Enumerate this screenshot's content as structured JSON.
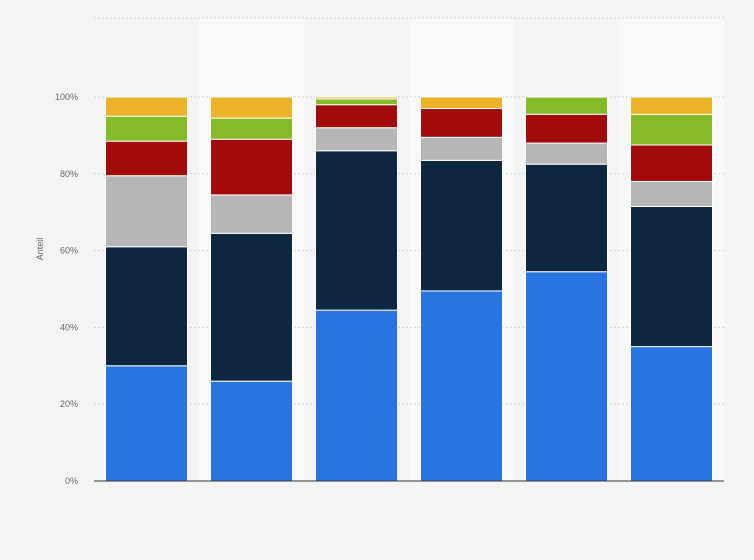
{
  "chart_data": {
    "type": "bar",
    "stacked": true,
    "categories": [
      "",
      "",
      "",
      "",
      "",
      ""
    ],
    "series": [
      {
        "color": "#2874e0",
        "values": [
          30,
          26,
          44.5,
          49.5,
          54.5,
          35
        ]
      },
      {
        "color": "#0e2740",
        "values": [
          31,
          38.5,
          41.5,
          34,
          28,
          36.5
        ]
      },
      {
        "color": "#b6b6b6",
        "values": [
          18.5,
          10,
          6,
          6,
          5.5,
          6.5
        ]
      },
      {
        "color": "#a10b0b",
        "values": [
          9,
          14.5,
          6,
          7.5,
          7.5,
          9.5
        ]
      },
      {
        "color": "#84bb26",
        "values": [
          6.5,
          5.5,
          1.5,
          0,
          4.5,
          8
        ]
      },
      {
        "color": "#ecb22a",
        "values": [
          5,
          5.5,
          0.5,
          3,
          0,
          4.5
        ]
      }
    ],
    "ylabel": "Anteil",
    "ylim": [
      0,
      100
    ],
    "yticks": [
      "0%",
      "20%",
      "40%",
      "60%",
      "80%",
      "100%"
    ],
    "grid": true,
    "legend": "none"
  }
}
